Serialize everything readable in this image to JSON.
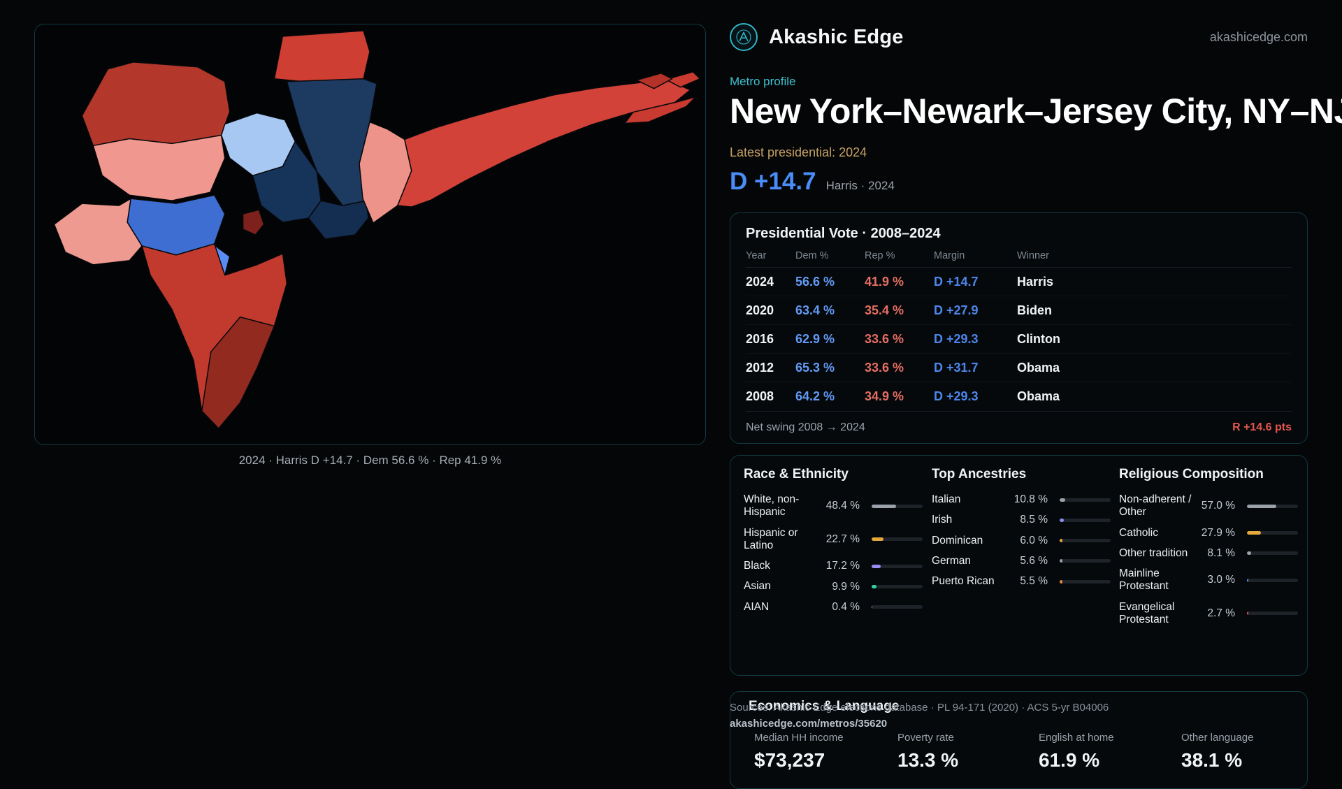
{
  "colors": {
    "accent_teal": "#3fc0cf",
    "dem_blue": "#4a8cf8",
    "rep_red": "#e4564d",
    "gold": "#c5a063"
  },
  "header": {
    "brand": "Akashic Edge",
    "site": "akashicedge.com"
  },
  "profile": {
    "kicker": "Metro profile",
    "title": "New York–Newark–Jersey City, NY–NJ",
    "latest_label": "Latest presidential: 2024",
    "headline_margin": "D +14.7",
    "headline_note": "Harris · 2024"
  },
  "map": {
    "caption": "2024 · Harris D +14.7 · Dem 56.6 % · Rep 41.9 %"
  },
  "vote_table": {
    "title": "Presidential Vote · 2008–2024",
    "columns": [
      "Year",
      "Dem %",
      "Rep %",
      "Margin",
      "Winner"
    ],
    "rows": [
      {
        "year": "2024",
        "dem": "56.6 %",
        "rep": "41.9 %",
        "margin": "D +14.7",
        "winner": "Harris"
      },
      {
        "year": "2020",
        "dem": "63.4 %",
        "rep": "35.4 %",
        "margin": "D +27.9",
        "winner": "Biden"
      },
      {
        "year": "2016",
        "dem": "62.9 %",
        "rep": "33.6 %",
        "margin": "D +29.3",
        "winner": "Clinton"
      },
      {
        "year": "2012",
        "dem": "65.3 %",
        "rep": "33.6 %",
        "margin": "D +31.7",
        "winner": "Obama"
      },
      {
        "year": "2008",
        "dem": "64.2 %",
        "rep": "34.9 %",
        "margin": "D +29.3",
        "winner": "Obama"
      }
    ],
    "net_swing_label": "Net swing 2008 → 2024",
    "net_swing_value": "R +14.6 pts"
  },
  "demographics": {
    "race": {
      "title": "Race & Ethnicity",
      "rows": [
        {
          "label": "White, non-Hispanic",
          "value": "48.4 %",
          "pct": 48.4,
          "color": "#9aa1aa"
        },
        {
          "label": "Hispanic or Latino",
          "value": "22.7 %",
          "pct": 22.7,
          "color": "#e5a83c"
        },
        {
          "label": "Black",
          "value": "17.2 %",
          "pct": 17.2,
          "color": "#9b8cf5"
        },
        {
          "label": "Asian",
          "value": "9.9 %",
          "pct": 9.9,
          "color": "#31d0a5"
        },
        {
          "label": "AIAN",
          "value": "0.4 %",
          "pct": 0.4,
          "color": "#9aa1aa"
        }
      ]
    },
    "ancestries": {
      "title": "Top Ancestries",
      "rows": [
        {
          "label": "Italian",
          "value": "10.8 %",
          "pct": 10.8,
          "color": "#9aa1aa"
        },
        {
          "label": "Irish",
          "value": "8.5 %",
          "pct": 8.5,
          "color": "#8b8ff0"
        },
        {
          "label": "Dominican",
          "value": "6.0 %",
          "pct": 6.0,
          "color": "#e5a83c"
        },
        {
          "label": "German",
          "value": "5.6 %",
          "pct": 5.6,
          "color": "#9aa1aa"
        },
        {
          "label": "Puerto Rican",
          "value": "5.5 %",
          "pct": 5.5,
          "color": "#e5883c"
        }
      ]
    },
    "religion": {
      "title": "Religious Composition",
      "rows": [
        {
          "label": "Non-adherent / Other",
          "value": "57.0 %",
          "pct": 57.0,
          "color": "#9aa1aa"
        },
        {
          "label": "Catholic",
          "value": "27.9 %",
          "pct": 27.9,
          "color": "#e5a83c"
        },
        {
          "label": "Other tradition",
          "value": "8.1 %",
          "pct": 8.1,
          "color": "#9aa1aa"
        },
        {
          "label": "Mainline Protestant",
          "value": "3.0 %",
          "pct": 3.0,
          "color": "#5b8df2"
        },
        {
          "label": "Evangelical Protestant",
          "value": "2.7 %",
          "pct": 2.7,
          "color": "#e4564d"
        }
      ]
    }
  },
  "economics": {
    "title": "Economics & Language",
    "stats": [
      {
        "label": "Median HH income",
        "value": "$73,237"
      },
      {
        "label": "Poverty rate",
        "value": "13.3 %"
      },
      {
        "label": "English at home",
        "value": "61.9 %"
      },
      {
        "label": "Other language",
        "value": "38.1 %"
      }
    ]
  },
  "footer": {
    "sources": "Sources: Akashic Edge elections database · PL 94-171 (2020) · ACS 5-yr B04006",
    "permalink": "akashicedge.com/metros/35620"
  }
}
